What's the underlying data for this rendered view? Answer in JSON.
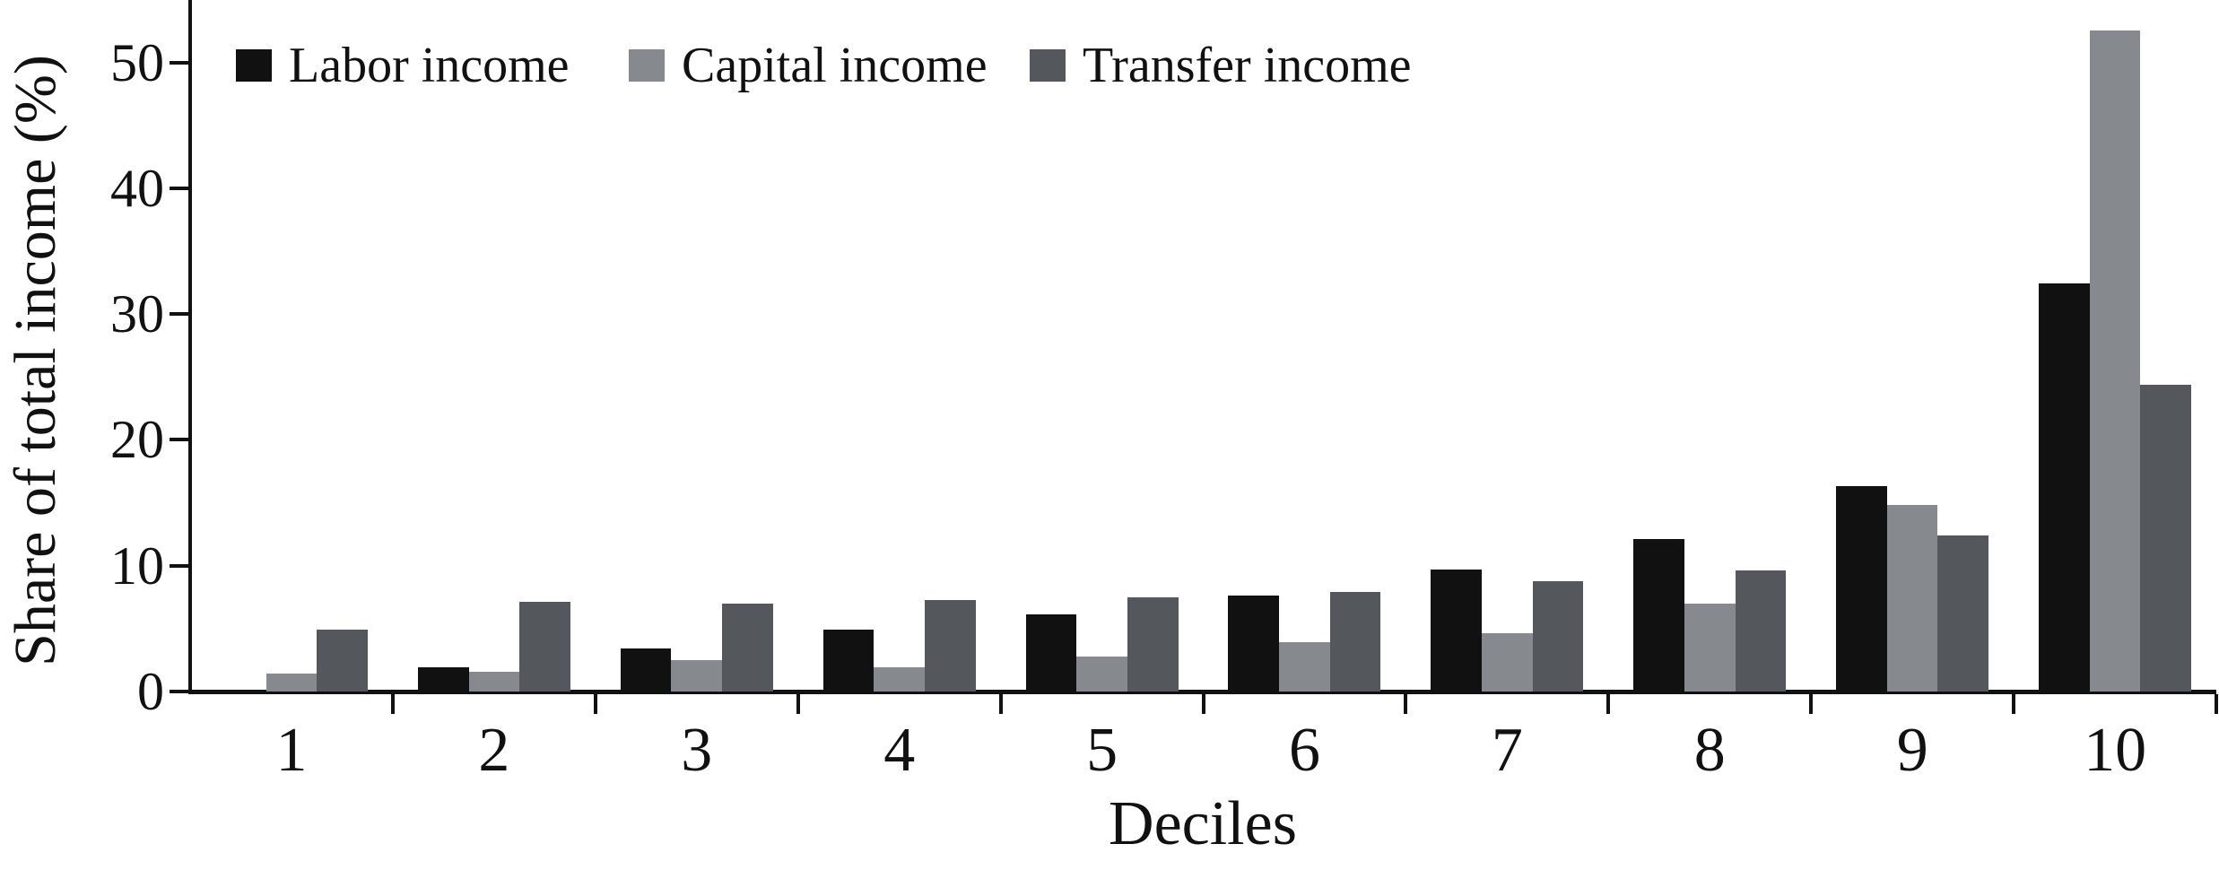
{
  "chart_data": {
    "type": "bar",
    "title": "",
    "xlabel": "Deciles",
    "ylabel": "Share of total income (%)",
    "categories": [
      "1",
      "2",
      "3",
      "4",
      "5",
      "6",
      "7",
      "8",
      "9",
      "10"
    ],
    "series": [
      {
        "name": "Labor income",
        "color": "#111111",
        "values": [
          0.1,
          1.9,
          3.4,
          4.9,
          6.1,
          7.6,
          9.7,
          12.1,
          16.3,
          32.4
        ]
      },
      {
        "name": "Capital income",
        "color": "#86898D",
        "values": [
          1.4,
          1.6,
          2.5,
          1.9,
          2.8,
          3.9,
          4.6,
          7.0,
          14.8,
          52.5
        ]
      },
      {
        "name": "Transfer income",
        "color": "#54575B",
        "values": [
          4.9,
          7.1,
          7.0,
          7.3,
          7.5,
          7.9,
          8.8,
          9.6,
          12.4,
          24.4
        ]
      }
    ],
    "yticks": [
      0,
      10,
      20,
      30,
      40,
      50
    ],
    "ylim": [
      0,
      55
    ],
    "grid": false,
    "legend_position": "top-inside",
    "axis_color": "#111111",
    "background_color": "#FFFFFF"
  }
}
